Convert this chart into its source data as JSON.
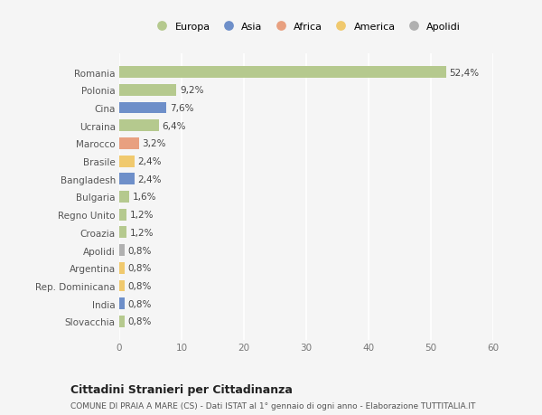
{
  "categories": [
    "Romania",
    "Polonia",
    "Cina",
    "Ucraina",
    "Marocco",
    "Brasile",
    "Bangladesh",
    "Bulgaria",
    "Regno Unito",
    "Croazia",
    "Apolidi",
    "Argentina",
    "Rep. Dominicana",
    "India",
    "Slovacchia"
  ],
  "values": [
    52.4,
    9.2,
    7.6,
    6.4,
    3.2,
    2.4,
    2.4,
    1.6,
    1.2,
    1.2,
    0.8,
    0.8,
    0.8,
    0.8,
    0.8
  ],
  "labels": [
    "52,4%",
    "9,2%",
    "7,6%",
    "6,4%",
    "3,2%",
    "2,4%",
    "2,4%",
    "1,6%",
    "1,2%",
    "1,2%",
    "0,8%",
    "0,8%",
    "0,8%",
    "0,8%",
    "0,8%"
  ],
  "colors": [
    "#b5c98e",
    "#b5c98e",
    "#6e8fc9",
    "#b5c98e",
    "#e8a080",
    "#f0c96e",
    "#6e8fc9",
    "#b5c98e",
    "#b5c98e",
    "#b5c98e",
    "#b0b0b0",
    "#f0c96e",
    "#f0c96e",
    "#6e8fc9",
    "#b5c98e"
  ],
  "legend_labels": [
    "Europa",
    "Asia",
    "Africa",
    "America",
    "Apolidi"
  ],
  "legend_colors": [
    "#b5c98e",
    "#6e8fc9",
    "#e8a080",
    "#f0c96e",
    "#b0b0b0"
  ],
  "xlim": [
    0,
    60
  ],
  "xticks": [
    0,
    10,
    20,
    30,
    40,
    50,
    60
  ],
  "title": "Cittadini Stranieri per Cittadinanza",
  "subtitle": "COMUNE DI PRAIA A MARE (CS) - Dati ISTAT al 1° gennaio di ogni anno - Elaborazione TUTTITALIA.IT",
  "background_color": "#f5f5f5",
  "bar_height": 0.65,
  "figsize": [
    6.0,
    4.6
  ],
  "dpi": 100,
  "label_fontsize": 7.5,
  "ytick_fontsize": 7.5,
  "xtick_fontsize": 7.5,
  "legend_fontsize": 8,
  "title_fontsize": 9,
  "subtitle_fontsize": 6.5
}
